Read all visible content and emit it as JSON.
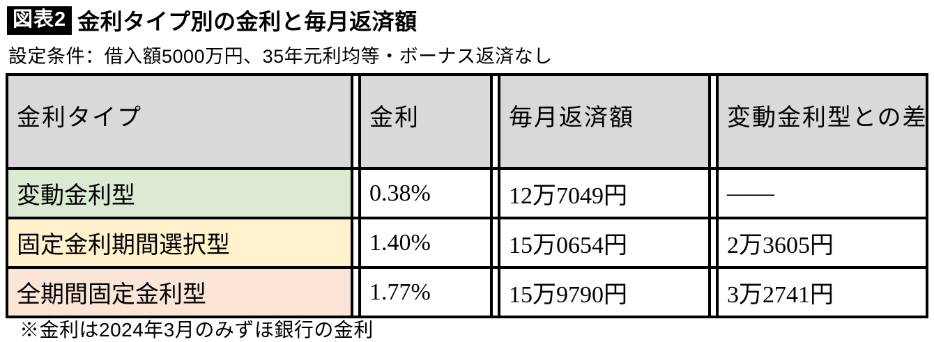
{
  "header": {
    "badge": "図表2",
    "title": "金利タイプ別の金利と毎月返済額",
    "subtitle": "設定条件：借入額5000万円、35年元利均等・ボーナス返済なし"
  },
  "table": {
    "columns": [
      "金利タイプ",
      "金利",
      "毎月返済額",
      "変動金利型との差"
    ],
    "rows": [
      {
        "type": "変動金利型",
        "rate": "0.38%",
        "monthly": "12万7049円",
        "diff": "――"
      },
      {
        "type": "固定金利期間選択型",
        "rate": "1.40%",
        "monthly": "15万0654円",
        "diff": "2万3605円"
      },
      {
        "type": "全期間固定金利型",
        "rate": "1.77%",
        "monthly": "15万9790円",
        "diff": "3万2741円"
      }
    ]
  },
  "footnote": "※金利は2024年3月のみずほ銀行の金利",
  "colors": {
    "badge_bg": "#000000",
    "header_cell_bg": "#d9d9d9",
    "row_variable_bg": "#dcead3",
    "row_fixed_period_bg": "#fff2cc",
    "row_full_fixed_bg": "#fbe5d6",
    "border": "#000000"
  }
}
